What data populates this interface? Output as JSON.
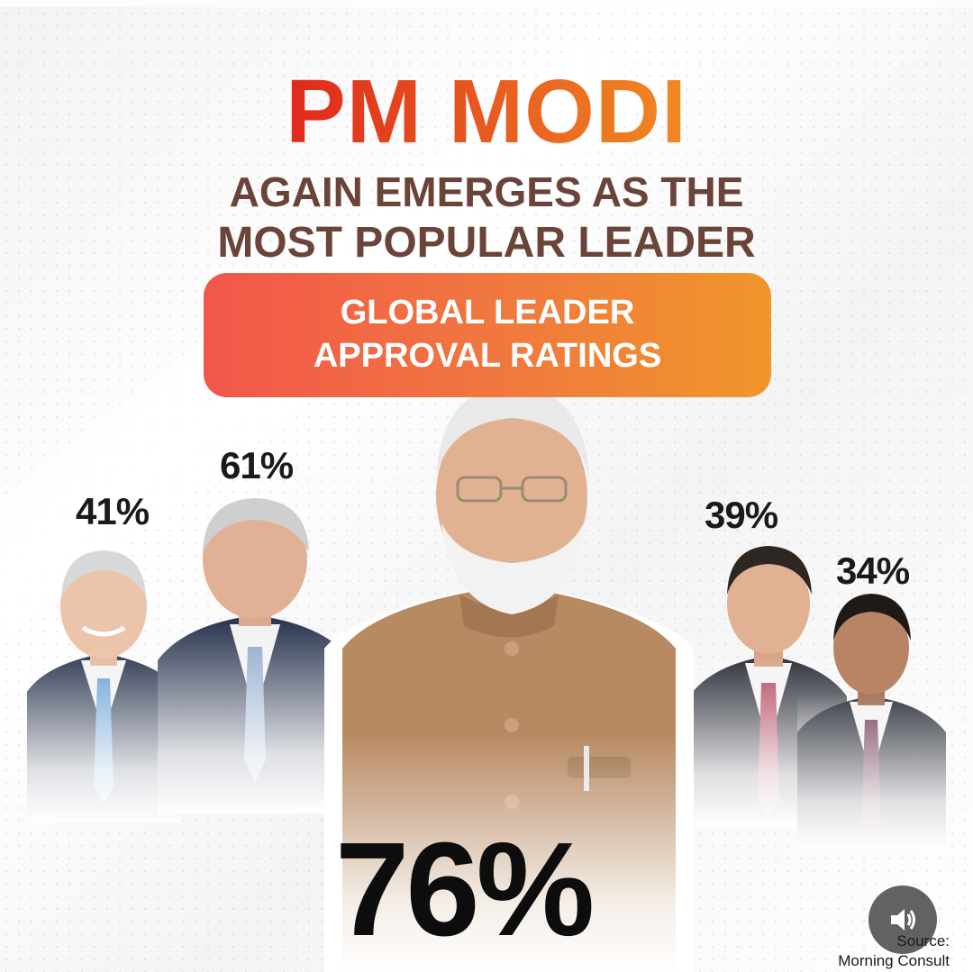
{
  "header": {
    "title": "PM MODI",
    "subtitle_line1": "AGAIN EMERGES AS THE",
    "subtitle_line2": "MOST POPULAR LEADER"
  },
  "badge": {
    "line1": "GLOBAL LEADER",
    "line2": "APPROVAL RATINGS"
  },
  "ratings": [
    {
      "value": "41%",
      "level": 41
    },
    {
      "value": "61%",
      "level": 61
    },
    {
      "value": "76%",
      "level": 76
    },
    {
      "value": "39%",
      "level": 39
    },
    {
      "value": "34%",
      "level": 34
    }
  ],
  "source": {
    "label": "Source:",
    "name": "Morning Consult"
  },
  "icons": {
    "sound": "speaker-icon"
  },
  "colors": {
    "title_start": "#e0281c",
    "title_end": "#f08a24",
    "subtitle": "#6a4438",
    "badge_start": "#f2564a",
    "badge_end": "#f0962a"
  }
}
